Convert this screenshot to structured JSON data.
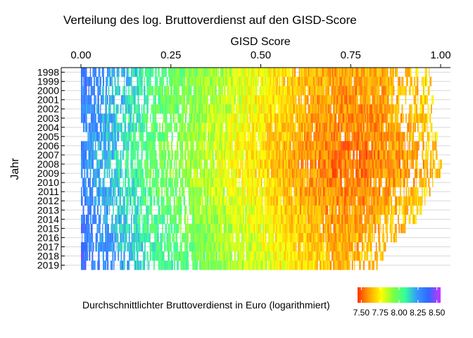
{
  "chart_data": {
    "type": "heatmap",
    "title": "Verteilung des log. Bruttoverdienst auf den GISD-Score",
    "xlabel": "GISD Score",
    "ylabel": "Jahr",
    "x_axis_position": "top",
    "xlim": [
      0,
      1
    ],
    "x_ticks": [
      {
        "value": 0,
        "label": "0.00"
      },
      {
        "value": 0.25,
        "label": "0.25"
      },
      {
        "value": 0.5,
        "label": "0.50"
      },
      {
        "value": 0.75,
        "label": "0.75"
      },
      {
        "value": 1,
        "label": "1.00"
      }
    ],
    "years": [
      "1998",
      "1999",
      "2000",
      "2001",
      "2002",
      "2003",
      "2004",
      "2005",
      "2006",
      "2007",
      "2008",
      "2009",
      "2010",
      "2011",
      "2012",
      "2013",
      "2014",
      "2015",
      "2016",
      "2017",
      "2018",
      "2019"
    ],
    "year_extents": [
      {
        "year": "1998",
        "min_score": 0.0,
        "max_score": 0.97
      },
      {
        "year": "1999",
        "min_score": 0.0,
        "max_score": 0.97
      },
      {
        "year": "2000",
        "min_score": 0.0,
        "max_score": 0.97
      },
      {
        "year": "2001",
        "min_score": 0.0,
        "max_score": 0.98
      },
      {
        "year": "2002",
        "min_score": 0.0,
        "max_score": 0.98
      },
      {
        "year": "2003",
        "min_score": 0.0,
        "max_score": 0.98
      },
      {
        "year": "2004",
        "min_score": 0.0,
        "max_score": 0.98
      },
      {
        "year": "2005",
        "min_score": 0.0,
        "max_score": 0.99
      },
      {
        "year": "2006",
        "min_score": 0.0,
        "max_score": 0.99
      },
      {
        "year": "2007",
        "min_score": 0.0,
        "max_score": 0.99
      },
      {
        "year": "2008",
        "min_score": 0.0,
        "max_score": 1.0
      },
      {
        "year": "2009",
        "min_score": 0.0,
        "max_score": 1.0
      },
      {
        "year": "2010",
        "min_score": 0.0,
        "max_score": 0.98
      },
      {
        "year": "2011",
        "min_score": 0.0,
        "max_score": 0.97
      },
      {
        "year": "2012",
        "min_score": 0.0,
        "max_score": 0.96
      },
      {
        "year": "2013",
        "min_score": 0.0,
        "max_score": 0.95
      },
      {
        "year": "2014",
        "min_score": 0.0,
        "max_score": 0.93
      },
      {
        "year": "2015",
        "min_score": 0.0,
        "max_score": 0.9
      },
      {
        "year": "2016",
        "min_score": 0.0,
        "max_score": 0.88
      },
      {
        "year": "2017",
        "min_score": 0.0,
        "max_score": 0.85
      },
      {
        "year": "2018",
        "min_score": 0.0,
        "max_score": 0.84
      },
      {
        "year": "2019",
        "min_score": 0.0,
        "max_score": 0.84
      }
    ],
    "color_profile": [
      {
        "gisd": 0.0,
        "value": 8.3
      },
      {
        "gisd": 0.1,
        "value": 8.15
      },
      {
        "gisd": 0.2,
        "value": 8.0
      },
      {
        "gisd": 0.35,
        "value": 7.85
      },
      {
        "gisd": 0.5,
        "value": 7.72
      },
      {
        "gisd": 0.6,
        "value": 7.62
      },
      {
        "gisd": 0.7,
        "value": 7.55
      },
      {
        "gisd": 0.8,
        "value": 7.56
      },
      {
        "gisd": 0.9,
        "value": 7.62
      },
      {
        "gisd": 1.0,
        "value": 7.68
      }
    ],
    "year_offsets": [
      {
        "year": "1998",
        "shift": 0.05
      },
      {
        "year": "2008",
        "shift": -0.02
      },
      {
        "year": "2019",
        "shift": 0.1
      }
    ],
    "legend": {
      "title": "Durchschnittlichter Bruttoverdienst in Euro (logarithmiert)",
      "position": "bottom",
      "range": [
        7.45,
        8.55
      ],
      "ticks": [
        {
          "value": 7.5,
          "label": "7.50"
        },
        {
          "value": 7.75,
          "label": "7.75"
        },
        {
          "value": 8.0,
          "label": "8.00"
        },
        {
          "value": 8.25,
          "label": "8.25"
        },
        {
          "value": 8.5,
          "label": "8.50"
        }
      ],
      "colors": [
        "#ff3300",
        "#ffa500",
        "#ffff00",
        "#80ff40",
        "#33ff99",
        "#3399ff",
        "#3366ff",
        "#cc33ff"
      ]
    },
    "grid": true
  }
}
